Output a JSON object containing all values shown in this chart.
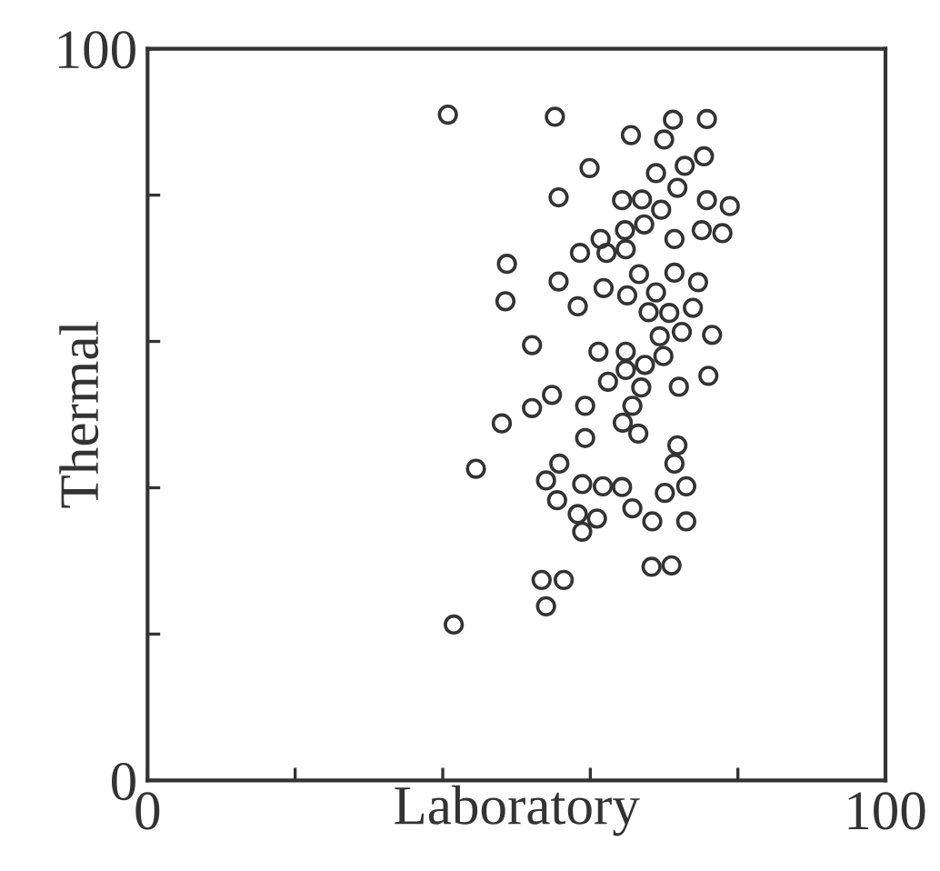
{
  "chart_data": {
    "type": "scatter",
    "xlabel": "Laboratory",
    "ylabel": "Thermal",
    "xlim": [
      0,
      100
    ],
    "ylim": [
      0,
      100
    ],
    "xticks": [
      0,
      {
        "value": 20,
        "label": null
      },
      {
        "value": 40,
        "label": null
      },
      {
        "value": 60,
        "label": null
      },
      {
        "value": 80,
        "label": null
      },
      100
    ],
    "yticks": [
      0,
      {
        "value": 20,
        "label": null
      },
      {
        "value": 40,
        "label": null
      },
      {
        "value": 60,
        "label": null
      },
      {
        "value": 80,
        "label": null
      },
      100
    ],
    "marker": "circle",
    "grid": false,
    "legend": false,
    "series": [
      {
        "color": "#333333",
        "x": [
          40.7,
          55.2,
          71.2,
          75.8,
          65.5,
          70.0,
          75.4,
          72.8,
          59.9,
          68.9,
          71.8,
          55.7,
          64.3,
          67.0,
          75.8,
          78.9,
          69.6,
          67.3,
          64.7,
          75.1,
          77.9,
          61.4,
          71.4,
          64.8,
          62.2,
          58.6,
          48.7,
          55.7,
          61.8,
          66.6,
          71.4,
          74.6,
          65.0,
          68.9,
          48.5,
          58.3,
          67.9,
          70.7,
          73.9,
          69.4,
          72.4,
          76.5,
          52.1,
          61.1,
          64.8,
          67.4,
          69.9,
          64.8,
          76.0,
          62.4,
          66.9,
          72.0,
          54.8,
          52.1,
          59.3,
          65.7,
          48.0,
          64.4,
          66.5,
          59.3,
          71.8,
          71.4,
          55.8,
          44.5,
          54.0,
          58.9,
          61.7,
          64.3,
          73.0,
          70.1,
          55.5,
          65.7,
          58.3,
          60.9,
          58.9,
          68.4,
          73.0,
          68.3,
          71.0,
          53.4,
          56.4,
          54.0,
          41.5
        ],
        "values": [
          91.0,
          90.7,
          90.3,
          90.4,
          88.2,
          87.6,
          85.3,
          84.0,
          83.7,
          83.0,
          81.0,
          79.7,
          79.3,
          79.4,
          79.3,
          78.5,
          78.0,
          76.0,
          75.2,
          75.2,
          74.8,
          74.0,
          74.0,
          72.6,
          72.1,
          72.1,
          70.6,
          68.2,
          67.3,
          69.2,
          69.4,
          68.1,
          66.3,
          66.7,
          65.5,
          64.8,
          64.0,
          63.9,
          64.6,
          60.7,
          61.3,
          60.9,
          59.5,
          58.6,
          58.6,
          56.8,
          58.0,
          56.1,
          55.3,
          54.5,
          53.7,
          53.8,
          52.7,
          50.9,
          51.2,
          51.2,
          48.8,
          48.9,
          47.4,
          46.8,
          45.8,
          43.3,
          43.3,
          42.6,
          41.0,
          40.5,
          40.2,
          40.1,
          40.2,
          39.3,
          38.3,
          37.2,
          36.4,
          35.8,
          34.0,
          35.4,
          35.4,
          29.2,
          29.4,
          27.4,
          27.4,
          23.8,
          21.3
        ]
      }
    ]
  }
}
